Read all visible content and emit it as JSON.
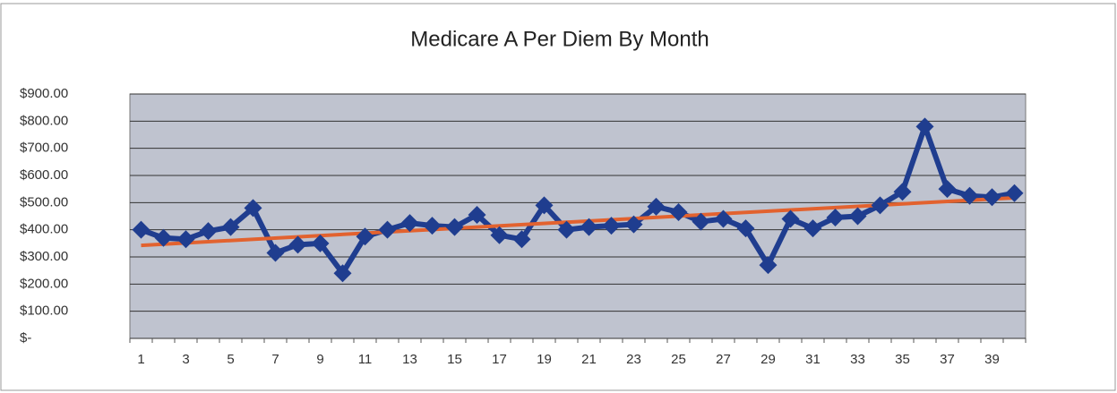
{
  "chart_data": {
    "type": "line",
    "title": "Medicare A Per Diem By Month",
    "categories": [
      "1",
      null,
      "3",
      null,
      "5",
      null,
      "7",
      null,
      "9",
      null,
      "11",
      null,
      "13",
      null,
      "15",
      null,
      "17",
      null,
      "19",
      null,
      "21",
      null,
      "23",
      null,
      "25",
      null,
      "27",
      null,
      "29",
      null,
      "31",
      null,
      "33",
      null,
      "35",
      null,
      "37",
      null,
      "39",
      null
    ],
    "values": [
      400,
      370,
      365,
      395,
      410,
      480,
      315,
      345,
      350,
      240,
      375,
      400,
      425,
      415,
      410,
      455,
      380,
      365,
      490,
      400,
      410,
      415,
      420,
      485,
      465,
      430,
      440,
      405,
      270,
      440,
      405,
      445,
      450,
      490,
      540,
      780,
      550,
      525,
      520,
      535
    ],
    "color": "#1f3d8f",
    "trendline": "linear",
    "trendline_color": "#e2622f",
    "ylim": [
      0,
      900
    ],
    "yticks": [
      {
        "value": 0,
        "label": "$-"
      },
      {
        "value": 100,
        "label": "$100.00"
      },
      {
        "value": 200,
        "label": "$200.00"
      },
      {
        "value": 300,
        "label": "$300.00"
      },
      {
        "value": 400,
        "label": "$400.00"
      },
      {
        "value": 500,
        "label": "$500.00"
      },
      {
        "value": 600,
        "label": "$600.00"
      },
      {
        "value": 700,
        "label": "$700.00"
      },
      {
        "value": 800,
        "label": "$800.00"
      },
      {
        "value": 900,
        "label": "$900.00"
      }
    ],
    "grid": true
  }
}
